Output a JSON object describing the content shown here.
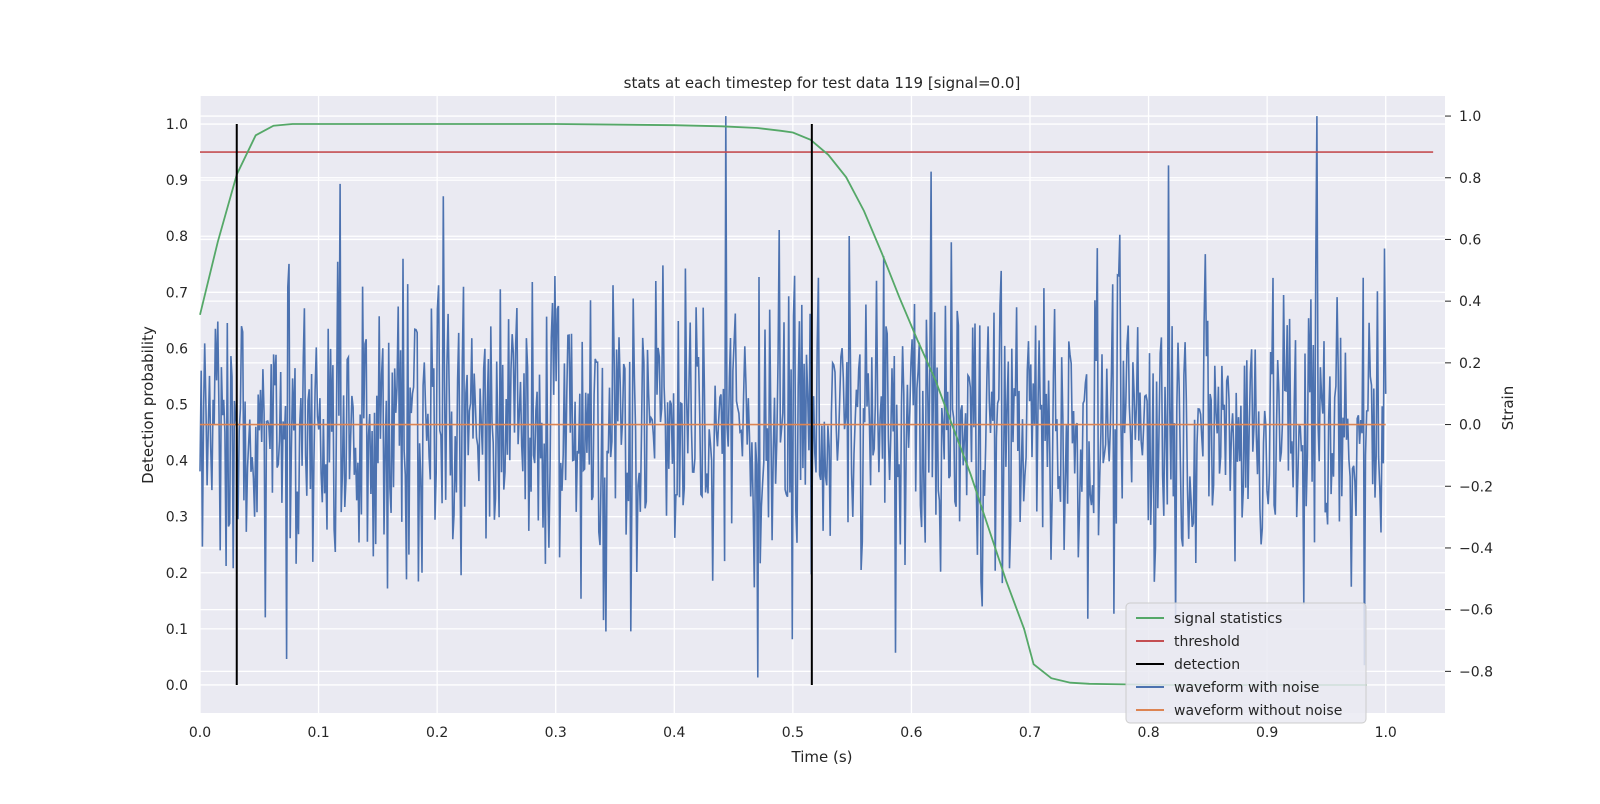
{
  "chart_data": {
    "type": "line",
    "title": "stats at each timestep for test data 119 [signal=0.0]",
    "xlabel": "Time (s)",
    "ylabel": "Detection probability",
    "y2label": "Strain",
    "xlim": [
      0.0,
      1.05
    ],
    "ylim": [
      -0.05,
      1.05
    ],
    "y2lim": [
      -0.935,
      1.065
    ],
    "xticks": [
      "0.0",
      "0.1",
      "0.2",
      "0.3",
      "0.4",
      "0.5",
      "0.6",
      "0.7",
      "0.8",
      "0.9",
      "1.0"
    ],
    "yticks": [
      "0.0",
      "0.1",
      "0.2",
      "0.3",
      "0.4",
      "0.5",
      "0.6",
      "0.7",
      "0.8",
      "0.9",
      "1.0"
    ],
    "y2ticks": [
      "−0.8",
      "−0.6",
      "−0.4",
      "−0.2",
      "0.0",
      "0.2",
      "0.4",
      "0.6",
      "0.8",
      "1.0"
    ],
    "grid": true,
    "legend_position": "lower-right",
    "colors": {
      "plot_background": "#eaeaf2",
      "grid": "#ffffff",
      "signal_statistics": "#55a868",
      "threshold": "#c44e52",
      "detection": "#000000",
      "waveform_with_noise": "#4c72b0",
      "waveform_without_noise": "#dd8452"
    },
    "series": [
      {
        "name": "signal statistics",
        "x": [
          0.0,
          0.015,
          0.031,
          0.047,
          0.062,
          0.078,
          0.1,
          0.2,
          0.3,
          0.4,
          0.44,
          0.47,
          0.49,
          0.5,
          0.515,
          0.53,
          0.545,
          0.56,
          0.575,
          0.59,
          0.605,
          0.62,
          0.635,
          0.65,
          0.665,
          0.68,
          0.695,
          0.703,
          0.718,
          0.734,
          0.75,
          0.78,
          0.82,
          0.9,
          0.95,
          0.984
        ],
        "y": [
          0.66,
          0.79,
          0.91,
          0.98,
          0.997,
          1.0,
          1.0,
          1.0,
          1.0,
          0.998,
          0.996,
          0.993,
          0.988,
          0.985,
          0.972,
          0.945,
          0.905,
          0.845,
          0.77,
          0.69,
          0.615,
          0.545,
          0.46,
          0.375,
          0.28,
          0.185,
          0.1,
          0.037,
          0.012,
          0.004,
          0.002,
          0.001,
          0.0,
          0.0,
          0.0,
          0.0
        ]
      },
      {
        "name": "threshold",
        "x": [
          0.0,
          1.04
        ],
        "y": [
          0.95,
          0.95
        ]
      },
      {
        "name": "detection",
        "x": [
          0.031,
          0.516
        ],
        "y_range": [
          0.0,
          1.0
        ]
      },
      {
        "name": "waveform with noise",
        "axis": "right",
        "n_points": 1000,
        "x_range": [
          0.0,
          1.0
        ],
        "std": 0.24,
        "peaks": [
          {
            "x": 0.443,
            "y": 1.0
          },
          {
            "x": 0.942,
            "y": 1.0
          },
          {
            "x": 0.817,
            "y": 0.84
          },
          {
            "x": 0.118,
            "y": 0.78
          },
          {
            "x": 0.205,
            "y": 0.74
          },
          {
            "x": 0.47,
            "y": -0.82
          },
          {
            "x": 0.587,
            "y": -0.74
          },
          {
            "x": 0.982,
            "y": -0.78
          },
          {
            "x": 0.073,
            "y": -0.76
          }
        ]
      },
      {
        "name": "waveform without noise",
        "axis": "right",
        "x": [
          0.0,
          1.0
        ],
        "y": [
          0.0,
          0.0
        ]
      }
    ]
  }
}
